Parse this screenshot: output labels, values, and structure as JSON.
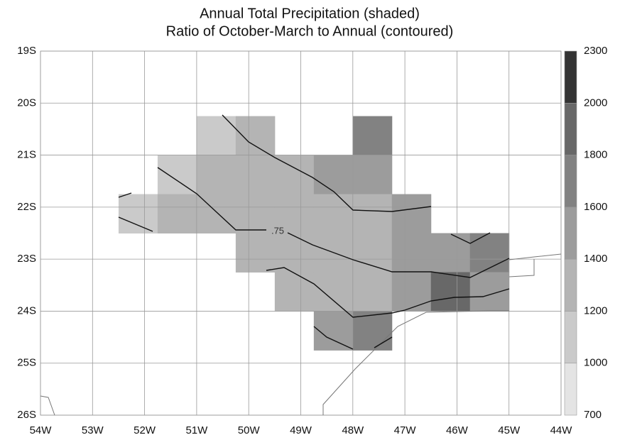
{
  "chart_data": {
    "type": "map",
    "title": "Annual Total Precipitation (shaded)",
    "subtitle": "Ratio of October-March to Annual (contoured)",
    "xlim": [
      -54,
      -44
    ],
    "ylim": [
      -26,
      -19
    ],
    "xticks": [
      {
        "value": -54,
        "label": "54W"
      },
      {
        "value": -53,
        "label": "53W"
      },
      {
        "value": -52,
        "label": "52W"
      },
      {
        "value": -51,
        "label": "51W"
      },
      {
        "value": -50,
        "label": "50W"
      },
      {
        "value": -49,
        "label": "49W"
      },
      {
        "value": -48,
        "label": "48W"
      },
      {
        "value": -47,
        "label": "47W"
      },
      {
        "value": -46,
        "label": "46W"
      },
      {
        "value": -45,
        "label": "45W"
      },
      {
        "value": -44,
        "label": "44W"
      }
    ],
    "yticks": [
      {
        "value": -19,
        "label": "19S"
      },
      {
        "value": -20,
        "label": "20S"
      },
      {
        "value": -21,
        "label": "21S"
      },
      {
        "value": -22,
        "label": "22S"
      },
      {
        "value": -23,
        "label": "23S"
      },
      {
        "value": -24,
        "label": "24S"
      },
      {
        "value": -25,
        "label": "25S"
      },
      {
        "value": -26,
        "label": "26S"
      }
    ],
    "grid": true,
    "colorbar": {
      "levels": [
        700,
        1000,
        1200,
        1400,
        1600,
        1800,
        2000,
        2300
      ],
      "colors": [
        "#e4e4e4",
        "#cacaca",
        "#b4b4b4",
        "#9c9c9c",
        "#828282",
        "#686868",
        "#333333"
      ]
    },
    "cells": {
      "lon": [
        -52.5,
        -51.75,
        -51,
        -50.25,
        -49.5,
        -48.75,
        -48,
        -47.25,
        -46.5,
        -45.75,
        -45
      ],
      "lat": [
        -20.25,
        -21,
        -21.75,
        -22.5,
        -23.25,
        -24,
        -24.75
      ],
      "values": [
        [
          null,
          null,
          1100,
          1300,
          null,
          null,
          1700,
          null,
          null,
          null
        ],
        [
          null,
          1100,
          1200,
          1300,
          1300,
          1400,
          1500,
          null,
          null,
          null
        ],
        [
          1100,
          1200,
          1300,
          1300,
          1300,
          1300,
          1300,
          1500,
          null,
          null
        ],
        [
          null,
          null,
          null,
          1300,
          1300,
          1300,
          1300,
          1400,
          1500,
          1700
        ],
        [
          null,
          null,
          null,
          null,
          1300,
          1300,
          1300,
          1500,
          1900,
          1500
        ],
        [
          null,
          null,
          null,
          null,
          null,
          1500,
          1600,
          null,
          null,
          null
        ]
      ]
    },
    "contour_label": {
      "value": 0.75,
      "label": ".75"
    }
  }
}
